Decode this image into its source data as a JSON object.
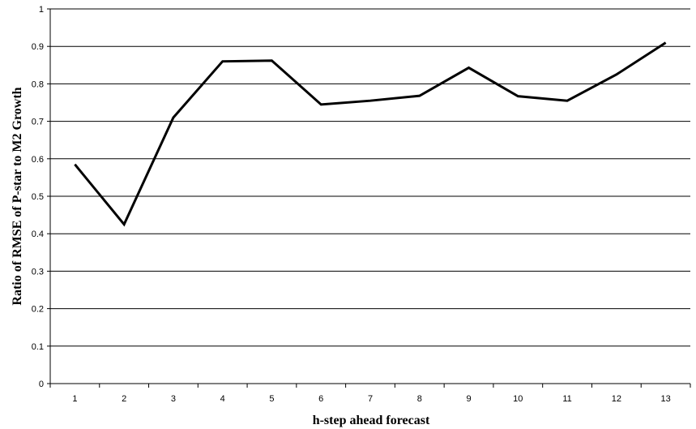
{
  "chart_data": {
    "type": "line",
    "xlabel": "h-step ahead forecast",
    "ylabel": "Ratio of RMSE of P-star to M2 Growth",
    "x": [
      1,
      2,
      3,
      4,
      5,
      6,
      7,
      8,
      9,
      10,
      11,
      12,
      13
    ],
    "x_tick_labels": [
      "1",
      "2",
      "3",
      "4",
      "5",
      "6",
      "7",
      "8",
      "9",
      "10",
      "11",
      "12",
      "13"
    ],
    "y_tick_labels": [
      "0",
      "0.1",
      "0.2",
      "0.3",
      "0.4",
      "0.5",
      "0.6",
      "0.7",
      "0.8",
      "0.9",
      "1"
    ],
    "ylim": [
      0,
      1
    ],
    "grid": "horizontal",
    "legend": "none",
    "series": [
      {
        "values": [
          0.585,
          0.425,
          0.71,
          0.86,
          0.862,
          0.745,
          0.755,
          0.768,
          0.843,
          0.767,
          0.755,
          0.825,
          0.91
        ],
        "color": "#000000"
      }
    ]
  }
}
